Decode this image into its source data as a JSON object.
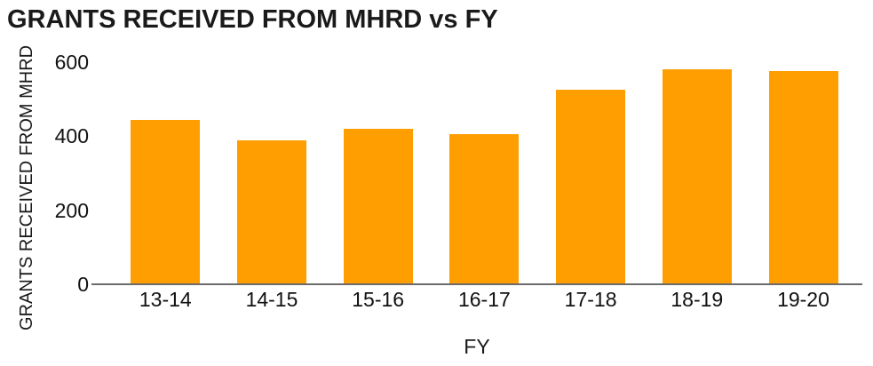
{
  "chart": {
    "title": "GRANTS RECEIVED FROM MHRD vs FY",
    "x_axis_label": "FY",
    "y_axis_label": "GRANTS RECEIVED FROM MHRD"
  },
  "colors": {
    "bar": "#FF9E00",
    "axis_line": "#6b6b6b",
    "text": "#111111"
  },
  "chart_data": {
    "type": "bar",
    "title": "GRANTS RECEIVED FROM MHRD vs FY",
    "xlabel": "FY",
    "ylabel": "GRANTS RECEIVED FROM MHRD",
    "categories": [
      "13-14",
      "14-15",
      "15-16",
      "16-17",
      "17-18",
      "18-19",
      "19-20"
    ],
    "values": [
      445,
      390,
      420,
      405,
      525,
      580,
      575
    ],
    "y_ticks": [
      0,
      200,
      400,
      600
    ],
    "ylim": [
      0,
      620
    ],
    "grid": false,
    "legend": false,
    "bar_color": "#FF9E00"
  }
}
